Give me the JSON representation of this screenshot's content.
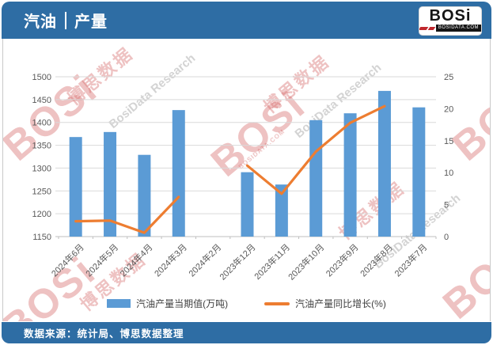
{
  "header": {
    "title_left": "汽油",
    "title_right": "产量",
    "logo_text": "BOSi",
    "logo_domain": "BOSIDATA.COM"
  },
  "footer": {
    "source": "数据来源：统计局、博思数据整理"
  },
  "watermarks": {
    "logo": "BOSi",
    "cn": "博思数据",
    "en": "BosiData Research",
    "site": "BOSIDATA.COM"
  },
  "colors": {
    "accent_blue": "#2E6DA4",
    "bar_blue": "#5B9BD5",
    "line_orange": "#ED7D31",
    "axis_text": "#595959",
    "gridline": "#D9D9D9"
  },
  "chart_data": {
    "type": "bar",
    "subtype": "combo-bar-line",
    "categories": [
      "2024年6月",
      "2024年5月",
      "2024年4月",
      "2024年3月",
      "2024年2月",
      "2023年12月",
      "2023年11月",
      "2023年10月",
      "2023年9月",
      "2023年8月",
      "2023年7月"
    ],
    "series": [
      {
        "name": "汽油产量当期值(万吨)",
        "type": "bar",
        "axis": "left",
        "color": "#5B9BD5",
        "values": [
          1368,
          1379,
          1329,
          1427,
          null,
          1291,
          1264,
          1405,
          1420,
          1469,
          1433
        ]
      },
      {
        "name": "汽油产量同比增长(%)",
        "type": "line",
        "axis": "right",
        "color": "#ED7D31",
        "values": [
          2.4,
          2.5,
          0.6,
          6.2,
          null,
          11.1,
          6.7,
          13.3,
          17.8,
          20.4,
          null
        ]
      }
    ],
    "left_axis": {
      "min": 1150,
      "max": 1500,
      "step": 50,
      "ticks": [
        "1150",
        "1200",
        "1250",
        "1300",
        "1350",
        "1400",
        "1450",
        "1500"
      ]
    },
    "right_axis": {
      "min": 0,
      "max": 25,
      "step": 5,
      "ticks": [
        "0",
        "5",
        "10",
        "15",
        "20",
        "25"
      ]
    },
    "grid": true,
    "legend_position": "bottom",
    "title": "汽油 | 产量"
  }
}
